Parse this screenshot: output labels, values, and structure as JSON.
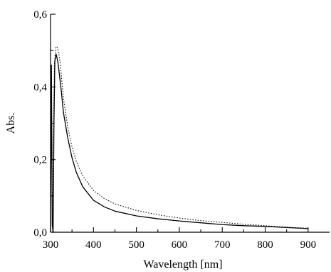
{
  "chart_data": {
    "type": "line",
    "title": "",
    "xlabel": "Wavelength [nm]",
    "ylabel": "Abs.",
    "xlim": [
      300,
      950
    ],
    "ylim": [
      0.0,
      0.6
    ],
    "grid": false,
    "x_ticks": [
      300,
      400,
      500,
      600,
      700,
      800,
      900
    ],
    "x_tick_labels": [
      "300",
      "400",
      "500",
      "600",
      "700",
      "800",
      "900"
    ],
    "y_ticks": [
      0.0,
      0.2,
      0.4,
      0.6
    ],
    "y_tick_labels": [
      "0,0",
      "0,2",
      "0,4",
      "0,6"
    ],
    "series": [
      {
        "style": "solid",
        "color": "#000000",
        "points": [
          [
            300,
            0.0
          ],
          [
            302,
            0.46
          ],
          [
            304,
            0.02
          ],
          [
            306,
            0.0
          ],
          [
            308,
            0.3
          ],
          [
            310,
            0.47
          ],
          [
            313,
            0.49
          ],
          [
            317,
            0.47
          ],
          [
            320,
            0.44
          ],
          [
            325,
            0.39
          ],
          [
            330,
            0.33
          ],
          [
            340,
            0.26
          ],
          [
            350,
            0.205
          ],
          [
            360,
            0.165
          ],
          [
            375,
            0.125
          ],
          [
            400,
            0.088
          ],
          [
            425,
            0.07
          ],
          [
            450,
            0.058
          ],
          [
            500,
            0.045
          ],
          [
            550,
            0.037
          ],
          [
            600,
            0.031
          ],
          [
            650,
            0.026
          ],
          [
            700,
            0.021
          ],
          [
            750,
            0.018
          ],
          [
            800,
            0.016
          ],
          [
            850,
            0.013
          ],
          [
            900,
            0.01
          ]
        ]
      },
      {
        "style": "dotted",
        "color": "#000000",
        "points": [
          [
            305,
            0.0
          ],
          [
            307,
            0.3
          ],
          [
            309,
            0.46
          ],
          [
            312,
            0.51
          ],
          [
            315,
            0.51
          ],
          [
            318,
            0.5
          ],
          [
            322,
            0.47
          ],
          [
            326,
            0.42
          ],
          [
            330,
            0.37
          ],
          [
            340,
            0.29
          ],
          [
            350,
            0.235
          ],
          [
            360,
            0.195
          ],
          [
            375,
            0.155
          ],
          [
            400,
            0.115
          ],
          [
            425,
            0.093
          ],
          [
            450,
            0.078
          ],
          [
            500,
            0.06
          ],
          [
            550,
            0.048
          ],
          [
            600,
            0.039
          ],
          [
            650,
            0.032
          ],
          [
            700,
            0.027
          ],
          [
            750,
            0.022
          ],
          [
            800,
            0.018
          ],
          [
            850,
            0.014
          ],
          [
            900,
            0.011
          ]
        ]
      }
    ]
  }
}
